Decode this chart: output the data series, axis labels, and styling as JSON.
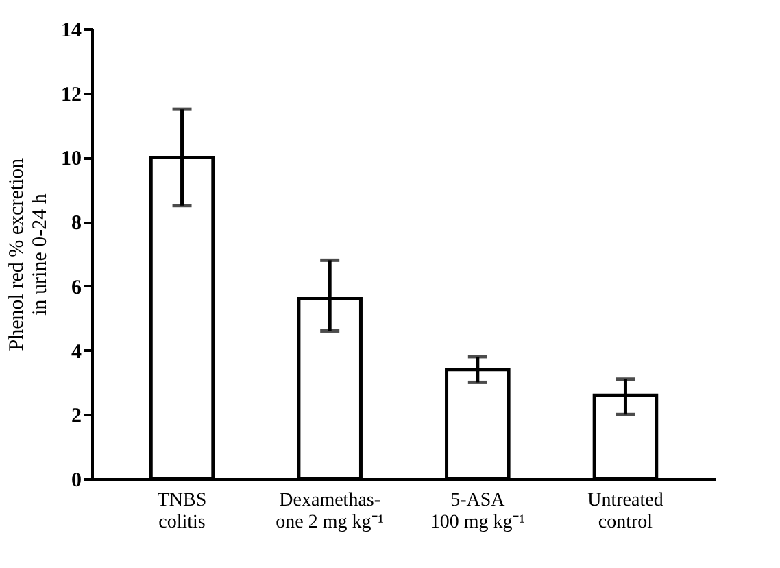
{
  "chart_data": {
    "type": "bar",
    "ylabel": "Phenol red % excretion\nin urine 0-24 h",
    "categories": [
      "TNBS\ncolitis",
      "Dexamethas-\none 2 mg kg⁻¹",
      "5-ASA\n100 mg kg⁻¹",
      "Untreated\ncontrol"
    ],
    "values": [
      10,
      5.6,
      3.4,
      2.6
    ],
    "errors": [
      [
        8.5,
        11.5
      ],
      [
        4.6,
        6.8
      ],
      [
        3.0,
        3.8
      ],
      [
        2.0,
        3.1
      ]
    ],
    "color": "#ffffff",
    "ylim": [
      0,
      14
    ],
    "yticks": [
      0,
      2,
      4,
      6,
      8,
      10,
      12,
      14
    ],
    "grid": false
  }
}
